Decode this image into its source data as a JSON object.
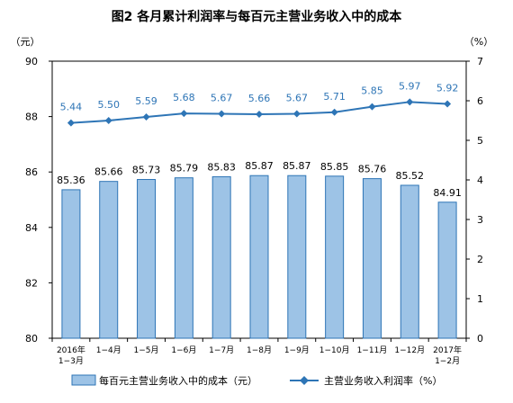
{
  "chart_data": {
    "type": "bar+line",
    "title": "图2  各月累计利润率与每百元主营业务收入中的成本",
    "left_unit": "（元）",
    "right_unit": "（%）",
    "categories": [
      [
        "2016年",
        "1−3月"
      ],
      [
        "1−4月"
      ],
      [
        "1−5月"
      ],
      [
        "1−6月"
      ],
      [
        "1−7月"
      ],
      [
        "1−8月"
      ],
      [
        "1−9月"
      ],
      [
        "1−10月"
      ],
      [
        "1−11月"
      ],
      [
        "1−12月"
      ],
      [
        "2017年",
        "1−2月"
      ]
    ],
    "series": [
      {
        "name": "每百元主营业务收入中的成本（元）",
        "type": "bar",
        "axis": "left",
        "color": "#9DC3E6",
        "border": "#2E75B6",
        "values": [
          85.36,
          85.66,
          85.73,
          85.79,
          85.83,
          85.87,
          85.87,
          85.85,
          85.76,
          85.52,
          84.91
        ],
        "labels": [
          "85.36",
          "85.66",
          "85.73",
          "85.79",
          "85.83",
          "85.87",
          "85.87",
          "85.85",
          "85.76",
          "85.52",
          "84.91"
        ]
      },
      {
        "name": "主营业务收入利润率（%）",
        "type": "line",
        "axis": "right",
        "color": "#2E75B6",
        "values": [
          5.44,
          5.5,
          5.59,
          5.68,
          5.67,
          5.66,
          5.67,
          5.71,
          5.85,
          5.97,
          5.92
        ],
        "labels": [
          "5.44",
          "5.50",
          "5.59",
          "5.68",
          "5.67",
          "5.66",
          "5.67",
          "5.71",
          "5.85",
          "5.97",
          "5.92"
        ]
      }
    ],
    "left_axis": {
      "min": 80,
      "max": 90,
      "ticks": [
        80,
        82,
        84,
        86,
        88,
        90
      ]
    },
    "right_axis": {
      "min": 0,
      "max": 7,
      "ticks": [
        0,
        1,
        2,
        3,
        4,
        5,
        6,
        7
      ]
    },
    "legend_position": "bottom"
  }
}
